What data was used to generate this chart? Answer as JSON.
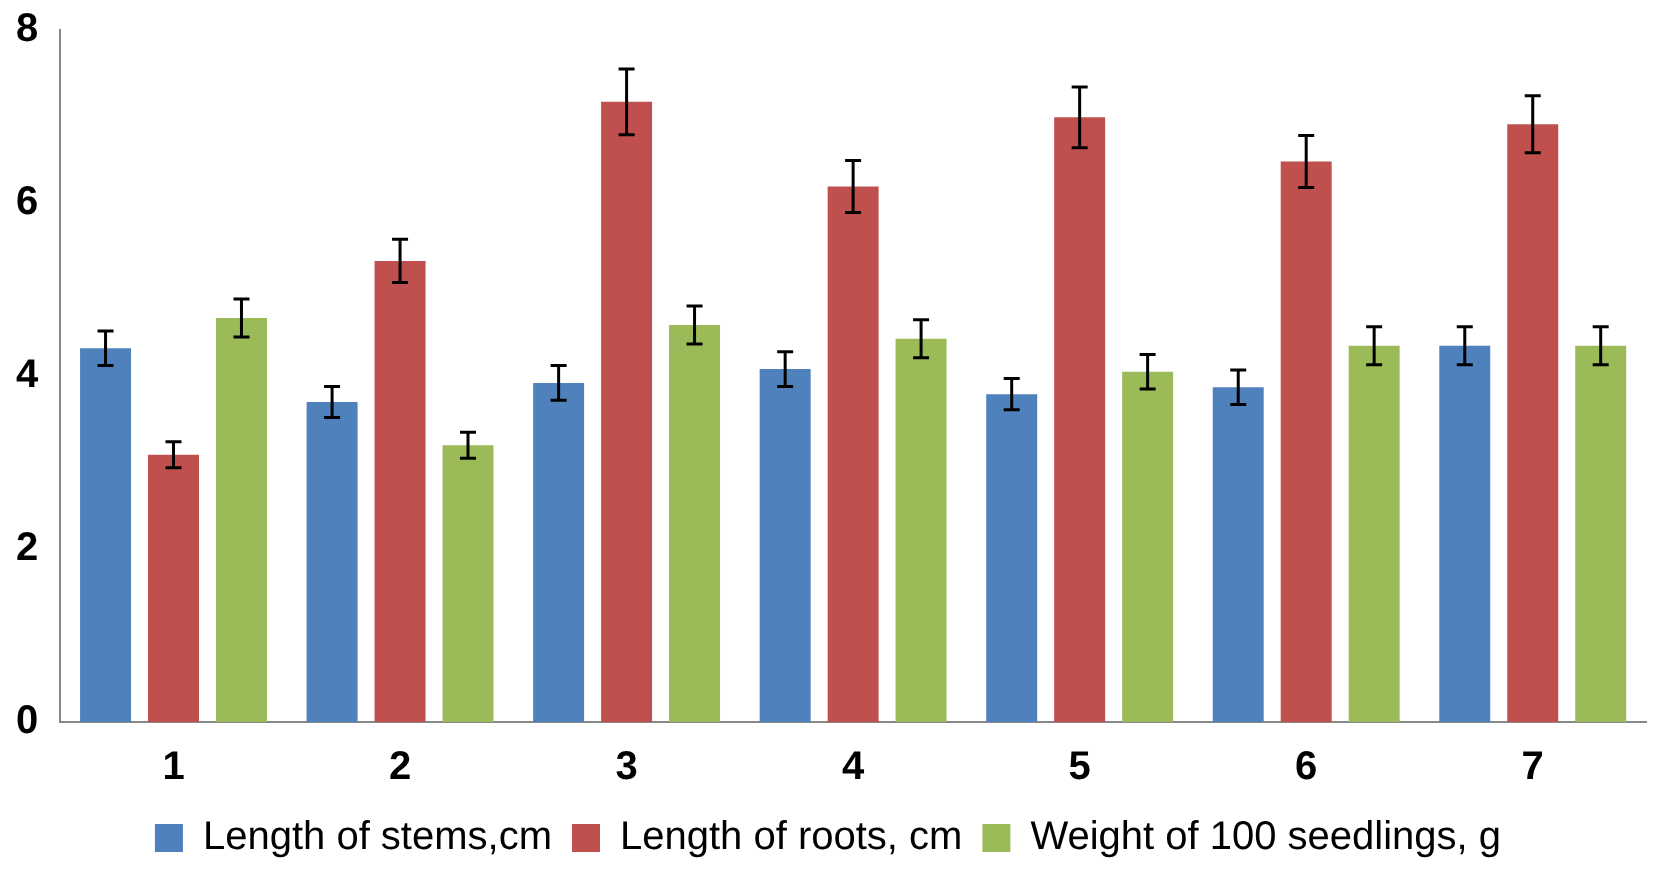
{
  "chart_data": {
    "type": "bar",
    "categories": [
      "1",
      "2",
      "3",
      "4",
      "5",
      "6",
      "7"
    ],
    "series": [
      {
        "name": "Length of stems,cm",
        "color": "#4f81bd",
        "values": [
          4.32,
          3.7,
          3.92,
          4.08,
          3.79,
          3.87,
          4.35
        ],
        "errors": [
          0.2,
          0.18,
          0.2,
          0.2,
          0.18,
          0.2,
          0.22
        ]
      },
      {
        "name": "Length of roots, cm",
        "color": "#c0504d",
        "values": [
          3.09,
          5.33,
          7.17,
          6.19,
          6.99,
          6.48,
          6.91
        ],
        "errors": [
          0.15,
          0.25,
          0.38,
          0.3,
          0.35,
          0.3,
          0.33
        ]
      },
      {
        "name": "Weight of 100 seedlings, g",
        "color": "#9bbb59",
        "values": [
          4.67,
          3.2,
          4.59,
          4.43,
          4.05,
          4.35,
          4.35
        ],
        "errors": [
          0.22,
          0.15,
          0.22,
          0.22,
          0.2,
          0.22,
          0.22
        ]
      }
    ],
    "ylim": [
      0,
      8
    ],
    "yticks": [
      0,
      2,
      4,
      6,
      8
    ],
    "grid": false,
    "legend": "bottom"
  }
}
